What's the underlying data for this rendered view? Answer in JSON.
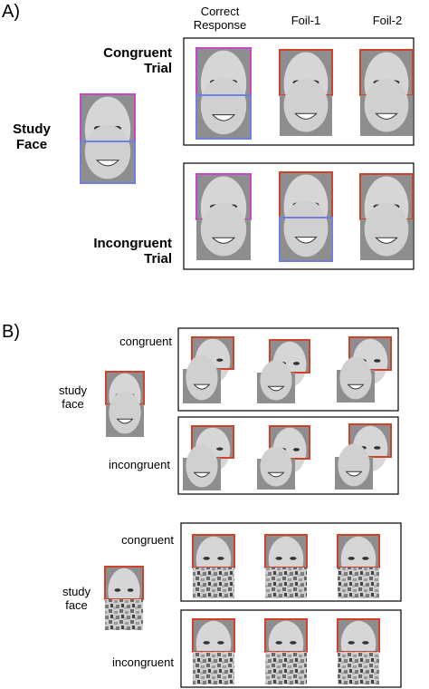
{
  "panel_a": {
    "label": "A)",
    "columns": [
      "Correct Response",
      "Foil-1",
      "Foil-2"
    ],
    "rows": [
      "Congruent Trial",
      "Incongruent Trial"
    ],
    "study_label": "Study Face"
  },
  "panel_b": {
    "label": "B)",
    "groups": [
      {
        "rows": [
          "congruent",
          "incongruent"
        ],
        "study_label": "study face"
      },
      {
        "rows": [
          "congruent",
          "incongruent"
        ],
        "study_label": "study face"
      }
    ]
  }
}
